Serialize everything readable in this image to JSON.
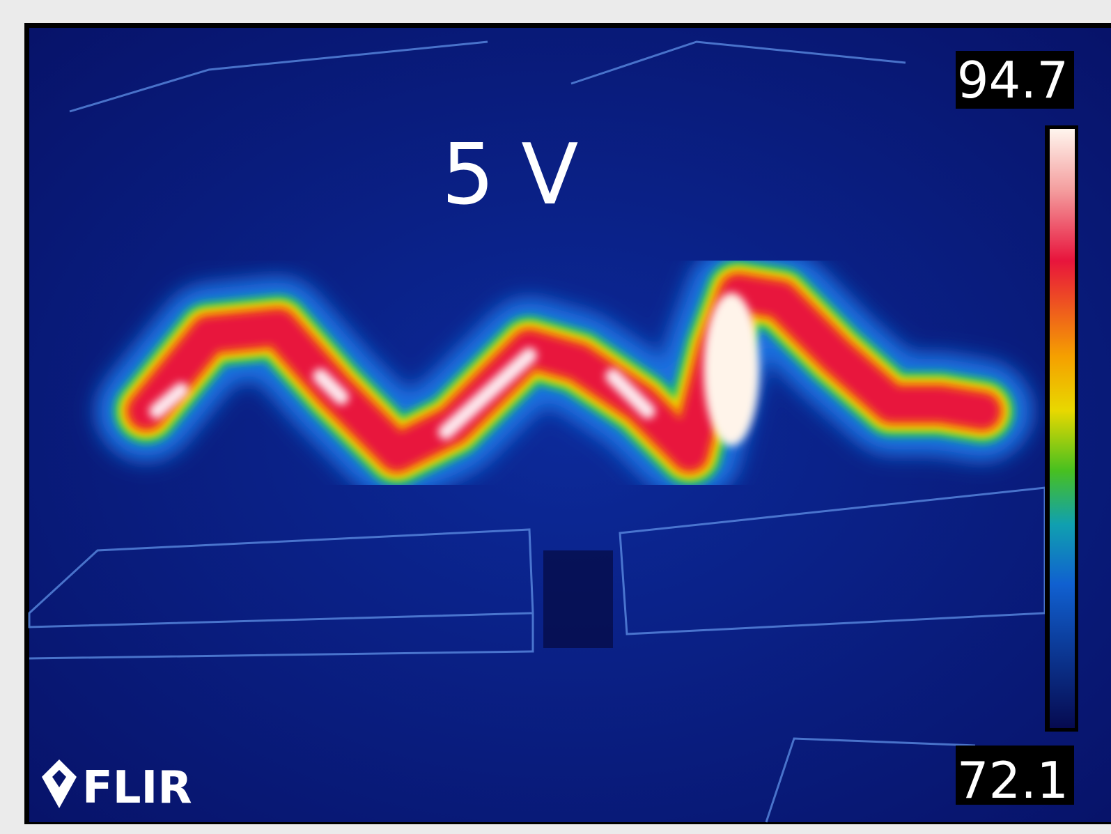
{
  "overlay_label": "5 V",
  "scale": {
    "max": "94.7",
    "min": "72.1"
  },
  "logo": "FLIR"
}
